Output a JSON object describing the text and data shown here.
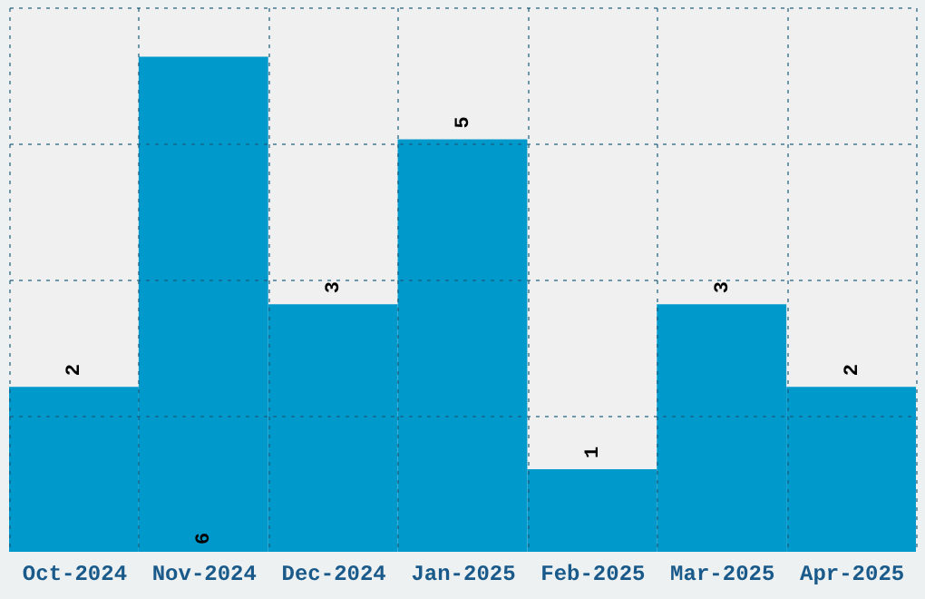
{
  "chart_data": {
    "type": "bar",
    "categories": [
      "Oct-2024",
      "Nov-2024",
      "Dec-2024",
      "Jan-2025",
      "Feb-2025",
      "Mar-2025",
      "Apr-2025"
    ],
    "values": [
      2,
      6,
      3,
      5,
      1,
      3,
      2
    ],
    "color": "#0099cc",
    "ylim": [
      0,
      6.6
    ],
    "yticks": [
      {
        "value": 1.65,
        "label": null
      },
      {
        "value": 3.3,
        "label": null
      },
      {
        "value": 4.95,
        "label": null
      },
      {
        "value": 6.6,
        "label": null
      }
    ],
    "grid": true,
    "data_labels": true,
    "tick_labels": "x"
  }
}
